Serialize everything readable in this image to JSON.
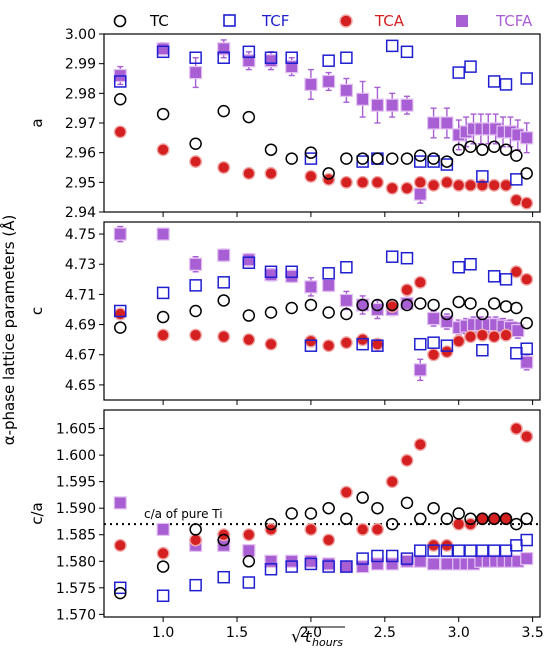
{
  "figure": {
    "ylabel_shared": "α-phase lattice parameters (Å)",
    "xlabel_base": "t",
    "xlabel_sub": "hours",
    "xlabel_root": "√",
    "annotation": "c/a of pure Ti",
    "reference_value": 1.587
  },
  "legend": [
    {
      "label": "TC",
      "marker": "open-circle",
      "color": "#000000"
    },
    {
      "label": "TCF",
      "marker": "open-square",
      "color": "#1f1fd1"
    },
    {
      "label": "TCA",
      "marker": "filled-circle",
      "color": "#d42020"
    },
    {
      "label": "TCFA",
      "marker": "filled-square",
      "color": "#a95fd4"
    }
  ],
  "chart_data": [
    {
      "type": "scatter",
      "ylabel": "a",
      "xlim": [
        0.6,
        3.55
      ],
      "ylim": [
        2.94,
        3.0
      ],
      "xticks": [
        1.0,
        1.5,
        2.0,
        2.5,
        3.0,
        3.5
      ],
      "yticks": [
        2.94,
        2.95,
        2.96,
        2.97,
        2.98,
        2.99,
        3.0
      ],
      "ytick_labels": [
        "2.94",
        "2.95",
        "2.96",
        "2.97",
        "2.98",
        "2.99",
        "3.00"
      ],
      "series": [
        {
          "name": "TC",
          "x": [
            0.71,
            1.0,
            1.22,
            1.41,
            1.58,
            1.73,
            1.87,
            2.0,
            2.12,
            2.24,
            2.35,
            2.45,
            2.55,
            2.65,
            2.74,
            2.83,
            2.92,
            3.0,
            3.08,
            3.16,
            3.24,
            3.32,
            3.39,
            3.46
          ],
          "y": [
            2.978,
            2.973,
            2.963,
            2.974,
            2.972,
            2.961,
            2.958,
            2.96,
            2.953,
            2.958,
            2.958,
            2.958,
            2.958,
            2.958,
            2.959,
            2.958,
            2.957,
            2.961,
            2.962,
            2.961,
            2.962,
            2.961,
            2.959,
            2.953
          ]
        },
        {
          "name": "TCF",
          "x": [
            0.71,
            1.0,
            1.22,
            1.41,
            1.58,
            1.73,
            1.87,
            2.0,
            2.12,
            2.24,
            2.35,
            2.45,
            2.55,
            2.65,
            2.74,
            2.83,
            2.92,
            3.0,
            3.08,
            3.16,
            3.24,
            3.32,
            3.39,
            3.46
          ],
          "y": [
            2.984,
            2.994,
            2.992,
            2.992,
            2.994,
            2.992,
            2.992,
            2.958,
            2.991,
            2.992,
            2.957,
            2.958,
            2.996,
            2.994,
            2.957,
            2.957,
            2.956,
            2.987,
            2.989,
            2.952,
            2.984,
            2.983,
            2.951,
            2.985
          ]
        },
        {
          "name": "TCA",
          "x": [
            0.71,
            1.0,
            1.22,
            1.41,
            1.58,
            1.73,
            2.0,
            2.12,
            2.24,
            2.35,
            2.45,
            2.55,
            2.65,
            2.74,
            2.83,
            2.92,
            3.0,
            3.08,
            3.16,
            3.24,
            3.32,
            3.39,
            3.46
          ],
          "y": [
            2.967,
            2.961,
            2.957,
            2.955,
            2.953,
            2.953,
            2.952,
            2.951,
            2.95,
            2.95,
            2.95,
            2.948,
            2.948,
            2.95,
            2.949,
            2.95,
            2.949,
            2.949,
            2.949,
            2.949,
            2.949,
            2.944,
            2.943
          ]
        },
        {
          "name": "TCFA",
          "x": [
            0.71,
            1.0,
            1.22,
            1.41,
            1.58,
            1.73,
            1.87,
            2.0,
            2.12,
            2.24,
            2.35,
            2.45,
            2.55,
            2.65,
            2.74,
            2.83,
            2.92,
            3.0,
            3.05,
            3.1,
            3.15,
            3.2,
            3.25,
            3.3,
            3.35,
            3.4,
            3.46
          ],
          "y": [
            2.986,
            2.995,
            2.987,
            2.995,
            2.991,
            2.991,
            2.989,
            2.983,
            2.984,
            2.981,
            2.978,
            2.976,
            2.976,
            2.976,
            2.946,
            2.97,
            2.97,
            2.966,
            2.967,
            2.968,
            2.968,
            2.968,
            2.968,
            2.967,
            2.967,
            2.966,
            2.965
          ],
          "error": [
            0.003,
            0.002,
            0.005,
            0.003,
            0.003,
            0.003,
            0.003,
            0.005,
            0.003,
            0.004,
            0.006,
            0.006,
            0.004,
            0.003,
            0.003,
            0.005,
            0.005,
            0.005,
            0.005,
            0.005,
            0.005,
            0.005,
            0.005,
            0.005,
            0.005,
            0.005,
            0.005
          ]
        }
      ]
    },
    {
      "type": "scatter",
      "ylabel": "c",
      "xlim": [
        0.6,
        3.55
      ],
      "ylim": [
        4.64,
        4.758
      ],
      "xticks": [
        1.0,
        1.5,
        2.0,
        2.5,
        3.0,
        3.5
      ],
      "yticks": [
        4.65,
        4.67,
        4.69,
        4.71,
        4.73,
        4.75
      ],
      "ytick_labels": [
        "4.65",
        "4.67",
        "4.69",
        "4.71",
        "4.73",
        "4.75"
      ],
      "series": [
        {
          "name": "TC",
          "x": [
            0.71,
            1.0,
            1.22,
            1.41,
            1.58,
            1.73,
            1.87,
            2.0,
            2.12,
            2.24,
            2.35,
            2.45,
            2.55,
            2.65,
            2.74,
            2.83,
            2.92,
            3.0,
            3.08,
            3.16,
            3.24,
            3.32,
            3.39,
            3.46
          ],
          "y": [
            4.688,
            4.695,
            4.699,
            4.706,
            4.696,
            4.698,
            4.701,
            4.703,
            4.698,
            4.697,
            4.703,
            4.703,
            4.703,
            4.703,
            4.704,
            4.703,
            4.697,
            4.705,
            4.704,
            4.697,
            4.704,
            4.702,
            4.701,
            4.691
          ]
        },
        {
          "name": "TCF",
          "x": [
            0.71,
            1.0,
            1.22,
            1.41,
            1.58,
            1.73,
            1.87,
            2.0,
            2.12,
            2.24,
            2.35,
            2.45,
            2.55,
            2.65,
            2.74,
            2.83,
            2.92,
            3.0,
            3.08,
            3.16,
            3.24,
            3.32,
            3.39,
            3.46
          ],
          "y": [
            4.699,
            4.711,
            4.716,
            4.718,
            4.731,
            4.725,
            4.725,
            4.676,
            4.724,
            4.728,
            4.677,
            4.676,
            4.735,
            4.734,
            4.677,
            4.678,
            4.676,
            4.728,
            4.73,
            4.673,
            4.722,
            4.72,
            4.671,
            4.674
          ]
        },
        {
          "name": "TCA",
          "x": [
            0.71,
            1.0,
            1.22,
            1.41,
            1.58,
            1.73,
            2.0,
            2.12,
            2.24,
            2.35,
            2.45,
            2.55,
            2.65,
            2.74,
            2.83,
            2.92,
            3.0,
            3.08,
            3.16,
            3.24,
            3.32,
            3.39,
            3.46
          ],
          "y": [
            4.697,
            4.683,
            4.683,
            4.682,
            4.68,
            4.677,
            4.679,
            4.676,
            4.678,
            4.68,
            4.677,
            4.702,
            4.713,
            4.718,
            4.67,
            4.672,
            4.679,
            4.682,
            4.683,
            4.682,
            4.683,
            4.725,
            4.72
          ]
        },
        {
          "name": "TCFA",
          "x": [
            0.71,
            1.0,
            1.22,
            1.41,
            1.58,
            1.73,
            1.87,
            2.0,
            2.12,
            2.24,
            2.35,
            2.45,
            2.55,
            2.65,
            2.74,
            2.83,
            2.92,
            3.0,
            3.05,
            3.1,
            3.15,
            3.2,
            3.25,
            3.3,
            3.35,
            3.4,
            3.46
          ],
          "y": [
            4.75,
            4.75,
            4.73,
            4.736,
            4.733,
            4.723,
            4.722,
            4.715,
            4.716,
            4.706,
            4.703,
            4.7,
            4.7,
            4.704,
            4.66,
            4.694,
            4.692,
            4.688,
            4.689,
            4.69,
            4.69,
            4.69,
            4.69,
            4.689,
            4.688,
            4.686,
            4.665
          ],
          "error": [
            0.005,
            0.003,
            0.005,
            0.004,
            0.004,
            0.004,
            0.004,
            0.006,
            0.004,
            0.006,
            0.006,
            0.006,
            0.004,
            0.004,
            0.007,
            0.005,
            0.005,
            0.005,
            0.005,
            0.005,
            0.005,
            0.005,
            0.005,
            0.005,
            0.005,
            0.005,
            0.005
          ]
        }
      ]
    },
    {
      "type": "scatter",
      "ylabel": "c/a",
      "xlabel": "√t_hours",
      "xlim": [
        0.6,
        3.55
      ],
      "ylim": [
        1.5695,
        1.6085
      ],
      "xticks": [
        1.0,
        1.5,
        2.0,
        2.5,
        3.0,
        3.5
      ],
      "xtick_labels": [
        "1.0",
        "1.5",
        "2.0",
        "2.5",
        "3.0",
        "3.5"
      ],
      "yticks": [
        1.57,
        1.575,
        1.58,
        1.585,
        1.59,
        1.595,
        1.6,
        1.605
      ],
      "ytick_labels": [
        "1.570",
        "1.575",
        "1.580",
        "1.585",
        "1.590",
        "1.595",
        "1.600",
        "1.605"
      ],
      "series": [
        {
          "name": "TC",
          "x": [
            0.71,
            1.0,
            1.22,
            1.41,
            1.58,
            1.73,
            1.87,
            2.0,
            2.12,
            2.24,
            2.35,
            2.45,
            2.55,
            2.65,
            2.74,
            2.83,
            2.92,
            3.0,
            3.08,
            3.16,
            3.24,
            3.32,
            3.39,
            3.46
          ],
          "y": [
            1.574,
            1.579,
            1.586,
            1.584,
            1.58,
            1.587,
            1.589,
            1.589,
            1.59,
            1.588,
            1.592,
            1.59,
            1.587,
            1.591,
            1.588,
            1.59,
            1.588,
            1.589,
            1.588,
            1.588,
            1.588,
            1.588,
            1.587,
            1.588
          ]
        },
        {
          "name": "TCF",
          "x": [
            0.71,
            1.0,
            1.22,
            1.41,
            1.58,
            1.73,
            1.87,
            2.0,
            2.12,
            2.24,
            2.35,
            2.45,
            2.55,
            2.65,
            2.74,
            2.83,
            2.92,
            3.0,
            3.08,
            3.16,
            3.24,
            3.32,
            3.39,
            3.46
          ],
          "y": [
            1.575,
            1.5735,
            1.5755,
            1.577,
            1.576,
            1.5785,
            1.579,
            1.5795,
            1.579,
            1.579,
            1.5805,
            1.581,
            1.581,
            1.5805,
            1.582,
            1.582,
            1.582,
            1.582,
            1.582,
            1.582,
            1.582,
            1.582,
            1.583,
            1.584
          ]
        },
        {
          "name": "TCA",
          "x": [
            0.71,
            1.0,
            1.22,
            1.41,
            1.58,
            1.73,
            2.0,
            2.12,
            2.24,
            2.35,
            2.45,
            2.55,
            2.65,
            2.74,
            2.83,
            2.92,
            3.0,
            3.08,
            3.16,
            3.24,
            3.32,
            3.39,
            3.46
          ],
          "y": [
            1.583,
            1.5815,
            1.584,
            1.585,
            1.585,
            1.586,
            1.586,
            1.584,
            1.593,
            1.586,
            1.586,
            1.595,
            1.599,
            1.602,
            1.583,
            1.583,
            1.587,
            1.587,
            1.588,
            1.588,
            1.588,
            1.605,
            1.6035
          ]
        },
        {
          "name": "TCFA",
          "x": [
            0.71,
            1.0,
            1.22,
            1.41,
            1.58,
            1.73,
            1.87,
            2.0,
            2.12,
            2.24,
            2.35,
            2.45,
            2.55,
            2.65,
            2.74,
            2.83,
            2.92,
            3.0,
            3.05,
            3.1,
            3.15,
            3.2,
            3.25,
            3.3,
            3.35,
            3.4,
            3.46
          ],
          "y": [
            1.591,
            1.586,
            1.583,
            1.583,
            1.582,
            1.58,
            1.58,
            1.58,
            1.5795,
            1.579,
            1.579,
            1.5795,
            1.5795,
            1.58,
            1.58,
            1.5795,
            1.5795,
            1.5795,
            1.5795,
            1.5795,
            1.58,
            1.58,
            1.58,
            1.58,
            1.58,
            1.58,
            1.5805
          ]
        }
      ]
    }
  ]
}
